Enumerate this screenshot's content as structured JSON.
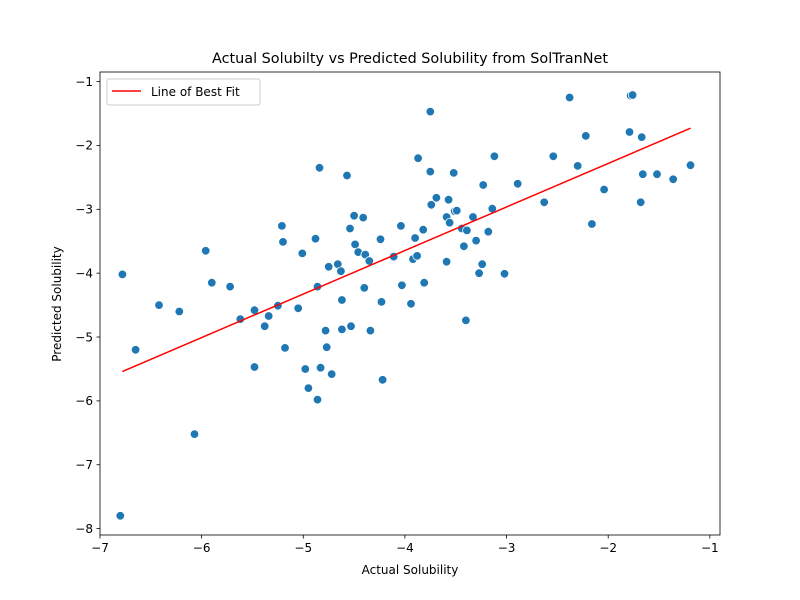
{
  "chart_data": {
    "type": "scatter",
    "title": "Actual Solubilty vs Predicted Solubility from SolTranNet",
    "xlabel": "Actual Solubility",
    "ylabel": "Predicted Solubility",
    "xlim": [
      -7.0,
      -0.9
    ],
    "ylim": [
      -8.1,
      -0.85
    ],
    "x_ticks": [
      -7,
      -6,
      -5,
      -4,
      -3,
      -2,
      -1
    ],
    "y_ticks": [
      -8,
      -7,
      -6,
      -5,
      -4,
      -3,
      -2,
      -1
    ],
    "x_tick_labels": [
      "−7",
      "−6",
      "−5",
      "−4",
      "−3",
      "−2",
      "−1"
    ],
    "y_tick_labels": [
      "−8",
      "−7",
      "−6",
      "−5",
      "−4",
      "−3",
      "−2",
      "−1"
    ],
    "grid": false,
    "legend_placement": "top-left",
    "colors": {
      "points": "#1f77b4",
      "fit_line": "#ff0000"
    },
    "series": [
      {
        "points": [
          [
            -6.78,
            -4.02
          ],
          [
            -6.8,
            -7.8
          ],
          [
            -6.65,
            -5.2
          ],
          [
            -6.42,
            -4.5
          ],
          [
            -6.22,
            -4.6
          ],
          [
            -6.07,
            -6.52
          ],
          [
            -5.96,
            -3.65
          ],
          [
            -5.9,
            -4.15
          ],
          [
            -5.72,
            -4.21
          ],
          [
            -5.62,
            -4.72
          ],
          [
            -5.48,
            -4.58
          ],
          [
            -5.48,
            -5.47
          ],
          [
            -5.38,
            -4.83
          ],
          [
            -5.34,
            -4.67
          ],
          [
            -5.25,
            -4.51
          ],
          [
            -5.21,
            -3.26
          ],
          [
            -5.2,
            -3.51
          ],
          [
            -5.18,
            -5.17
          ],
          [
            -5.05,
            -4.55
          ],
          [
            -5.01,
            -3.69
          ],
          [
            -4.98,
            -5.5
          ],
          [
            -4.95,
            -5.8
          ],
          [
            -4.88,
            -3.46
          ],
          [
            -4.86,
            -4.21
          ],
          [
            -4.86,
            -5.98
          ],
          [
            -4.84,
            -2.35
          ],
          [
            -4.83,
            -5.48
          ],
          [
            -4.78,
            -4.9
          ],
          [
            -4.77,
            -5.16
          ],
          [
            -4.75,
            -3.9
          ],
          [
            -4.72,
            -5.58
          ],
          [
            -4.66,
            -3.86
          ],
          [
            -4.63,
            -3.97
          ],
          [
            -4.62,
            -4.42
          ],
          [
            -4.62,
            -4.88
          ],
          [
            -4.57,
            -2.47
          ],
          [
            -4.54,
            -3.3
          ],
          [
            -4.53,
            -4.83
          ],
          [
            -4.5,
            -3.1
          ],
          [
            -4.49,
            -3.55
          ],
          [
            -4.46,
            -3.67
          ],
          [
            -4.41,
            -3.13
          ],
          [
            -4.4,
            -4.23
          ],
          [
            -4.39,
            -3.71
          ],
          [
            -4.35,
            -3.81
          ],
          [
            -4.34,
            -4.9
          ],
          [
            -4.24,
            -3.47
          ],
          [
            -4.23,
            -4.45
          ],
          [
            -4.22,
            -5.67
          ],
          [
            -4.11,
            -3.74
          ],
          [
            -4.04,
            -3.26
          ],
          [
            -4.03,
            -4.19
          ],
          [
            -3.94,
            -4.48
          ],
          [
            -3.92,
            -3.78
          ],
          [
            -3.9,
            -3.45
          ],
          [
            -3.88,
            -3.73
          ],
          [
            -3.87,
            -2.2
          ],
          [
            -3.82,
            -3.32
          ],
          [
            -3.81,
            -4.15
          ],
          [
            -3.75,
            -2.41
          ],
          [
            -3.75,
            -1.47
          ],
          [
            -3.74,
            -2.93
          ],
          [
            -3.69,
            -2.82
          ],
          [
            -3.59,
            -3.12
          ],
          [
            -3.59,
            -3.82
          ],
          [
            -3.57,
            -2.85
          ],
          [
            -3.56,
            -3.21
          ],
          [
            -3.52,
            -2.43
          ],
          [
            -3.51,
            -3.03
          ],
          [
            -3.49,
            -3.02
          ],
          [
            -3.44,
            -3.3
          ],
          [
            -3.42,
            -3.58
          ],
          [
            -3.4,
            -4.74
          ],
          [
            -3.39,
            -3.33
          ],
          [
            -3.33,
            -3.12
          ],
          [
            -3.3,
            -3.49
          ],
          [
            -3.27,
            -4.0
          ],
          [
            -3.24,
            -3.86
          ],
          [
            -3.23,
            -2.62
          ],
          [
            -3.18,
            -3.35
          ],
          [
            -3.14,
            -2.99
          ],
          [
            -3.12,
            -2.17
          ],
          [
            -3.02,
            -4.01
          ],
          [
            -2.89,
            -2.6
          ],
          [
            -2.63,
            -2.89
          ],
          [
            -2.54,
            -2.17
          ],
          [
            -2.38,
            -1.25
          ],
          [
            -2.3,
            -2.32
          ],
          [
            -2.22,
            -1.85
          ],
          [
            -2.16,
            -3.23
          ],
          [
            -2.04,
            -2.69
          ],
          [
            -1.79,
            -1.79
          ],
          [
            -1.78,
            -1.22
          ],
          [
            -1.76,
            -1.21
          ],
          [
            -1.68,
            -2.89
          ],
          [
            -1.67,
            -1.87
          ],
          [
            -1.66,
            -2.45
          ],
          [
            -1.52,
            -2.45
          ],
          [
            -1.36,
            -2.53
          ],
          [
            -1.19,
            -2.31
          ]
        ]
      }
    ],
    "fit_line": {
      "name": "Line of Best Fit",
      "points": [
        [
          -6.78,
          -5.54
        ],
        [
          -1.19,
          -1.73
        ]
      ]
    }
  }
}
